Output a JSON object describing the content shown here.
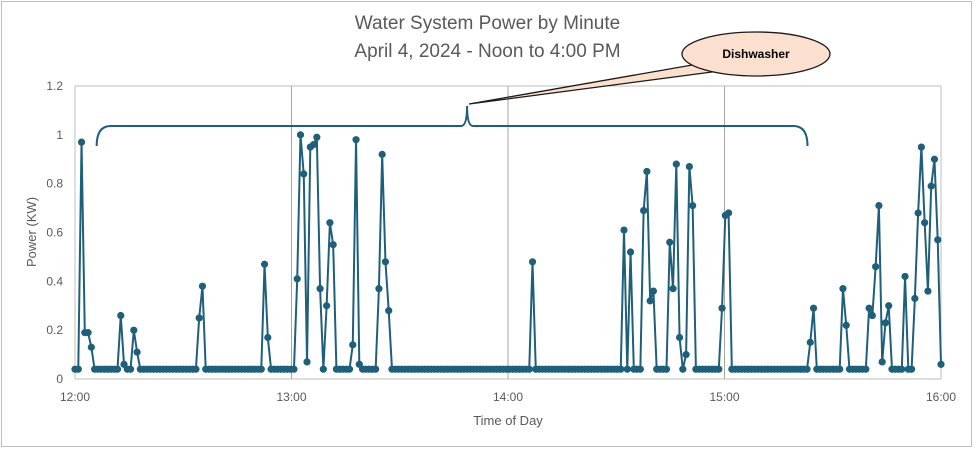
{
  "chart_data": {
    "type": "line",
    "title": "Water System Power by Minute",
    "subtitle": "April 4, 2024 - Noon to 4:00 PM",
    "xlabel": "Time of Day",
    "ylabel": "Power (KW)",
    "x_range_minutes": [
      0,
      240
    ],
    "x_ticks": [
      {
        "minute": 0,
        "label": "12:00"
      },
      {
        "minute": 60,
        "label": "13:00"
      },
      {
        "minute": 120,
        "label": "14:00"
      },
      {
        "minute": 180,
        "label": "15:00"
      },
      {
        "minute": 240,
        "label": "16:00"
      }
    ],
    "ylim": [
      0,
      1.2
    ],
    "y_ticks": [
      "0",
      "0.2",
      "0.4",
      "0.6",
      "0.8",
      "1",
      "1.2"
    ],
    "grid": "vertical at hours",
    "line_color": "#1f5f7a",
    "annotation": {
      "text": "Dishwasher",
      "brace_from_minute": 6,
      "brace_to_minute": 203,
      "fill": "#fbe0cf"
    },
    "series": [
      {
        "values": [
          0.04,
          0.04,
          0.97,
          0.19,
          0.19,
          0.13,
          0.04,
          0.04,
          0.04,
          0.04,
          0.04,
          0.04,
          0.04,
          0.04,
          0.26,
          0.06,
          0.04,
          0.04,
          0.2,
          0.11,
          0.04,
          0.04,
          0.04,
          0.04,
          0.04,
          0.04,
          0.04,
          0.04,
          0.04,
          0.04,
          0.04,
          0.04,
          0.04,
          0.04,
          0.04,
          0.04,
          0.04,
          0.04,
          0.25,
          0.38,
          0.04,
          0.04,
          0.04,
          0.04,
          0.04,
          0.04,
          0.04,
          0.04,
          0.04,
          0.04,
          0.04,
          0.04,
          0.04,
          0.04,
          0.04,
          0.04,
          0.04,
          0.04,
          0.47,
          0.17,
          0.04,
          0.04,
          0.04,
          0.04,
          0.04,
          0.04,
          0.04,
          0.04,
          0.41,
          1.0,
          0.84,
          0.07,
          0.95,
          0.96,
          0.99,
          0.37,
          0.04,
          0.3,
          0.64,
          0.55,
          0.04,
          0.04,
          0.04,
          0.04,
          0.04,
          0.14,
          0.98,
          0.06,
          0.04,
          0.04,
          0.04,
          0.04,
          0.04,
          0.37,
          0.92,
          0.48,
          0.28,
          0.04,
          0.04,
          0.04,
          0.04,
          0.04,
          0.04,
          0.04,
          0.04,
          0.04,
          0.04,
          0.04,
          0.04,
          0.04,
          0.04,
          0.04,
          0.04,
          0.04,
          0.04,
          0.04,
          0.04,
          0.04,
          0.04,
          0.04,
          0.04,
          0.04,
          0.04,
          0.04,
          0.04,
          0.04,
          0.04,
          0.04,
          0.04,
          0.04,
          0.04,
          0.04,
          0.04,
          0.04,
          0.04,
          0.04,
          0.04,
          0.04,
          0.04,
          0.04,
          0.48,
          0.04,
          0.04,
          0.04,
          0.04,
          0.04,
          0.04,
          0.04,
          0.04,
          0.04,
          0.04,
          0.04,
          0.04,
          0.04,
          0.04,
          0.04,
          0.04,
          0.04,
          0.04,
          0.04,
          0.04,
          0.04,
          0.04,
          0.04,
          0.04,
          0.04,
          0.04,
          0.04,
          0.61,
          0.04,
          0.52,
          0.04,
          0.04,
          0.04,
          0.69,
          0.85,
          0.32,
          0.36,
          0.04,
          0.04,
          0.04,
          0.04,
          0.56,
          0.37,
          0.88,
          0.17,
          0.04,
          0.1,
          0.87,
          0.71,
          0.04,
          0.04,
          0.04,
          0.04,
          0.04,
          0.04,
          0.04,
          0.04,
          0.29,
          0.67,
          0.68,
          0.04,
          0.04,
          0.04,
          0.04,
          0.04,
          0.04,
          0.04,
          0.04,
          0.04,
          0.04,
          0.04,
          0.04,
          0.04,
          0.04,
          0.04,
          0.04,
          0.04,
          0.04,
          0.04,
          0.04,
          0.04,
          0.04,
          0.04,
          0.04,
          0.15,
          0.29,
          0.04,
          0.04,
          0.04,
          0.04,
          0.04,
          0.04,
          0.04,
          0.04,
          0.37,
          0.22,
          0.04,
          0.04,
          0.04,
          0.04,
          0.04,
          0.04,
          0.29,
          0.26,
          0.46,
          0.71,
          0.07,
          0.23,
          0.3,
          0.04,
          0.04,
          0.04,
          0.04,
          0.42,
          0.04,
          0.04,
          0.33,
          0.68,
          0.95,
          0.64,
          0.36,
          0.79,
          0.9,
          0.57,
          0.06
        ]
      }
    ]
  }
}
